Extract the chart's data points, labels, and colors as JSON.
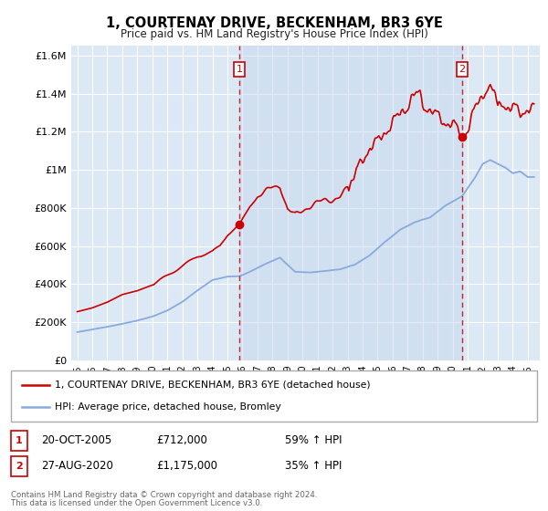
{
  "title": "1, COURTENAY DRIVE, BECKENHAM, BR3 6YE",
  "subtitle": "Price paid vs. HM Land Registry's House Price Index (HPI)",
  "red_label": "1, COURTENAY DRIVE, BECKENHAM, BR3 6YE (detached house)",
  "blue_label": "HPI: Average price, detached house, Bromley",
  "sale1_date": "20-OCT-2005",
  "sale1_price": 712000,
  "sale1_hpi_pct": "59% ↑ HPI",
  "sale2_date": "27-AUG-2020",
  "sale2_price": 1175000,
  "sale2_hpi_pct": "35% ↑ HPI",
  "footnote1": "Contains HM Land Registry data © Crown copyright and database right 2024.",
  "footnote2": "This data is licensed under the Open Government Licence v3.0.",
  "ylim": [
    0,
    1650000
  ],
  "background_color": "#dce9f5",
  "plot_bg": "#dce9f5",
  "red_color": "#cc0000",
  "blue_color": "#88aadd",
  "marker_box_color": "#cc0000"
}
